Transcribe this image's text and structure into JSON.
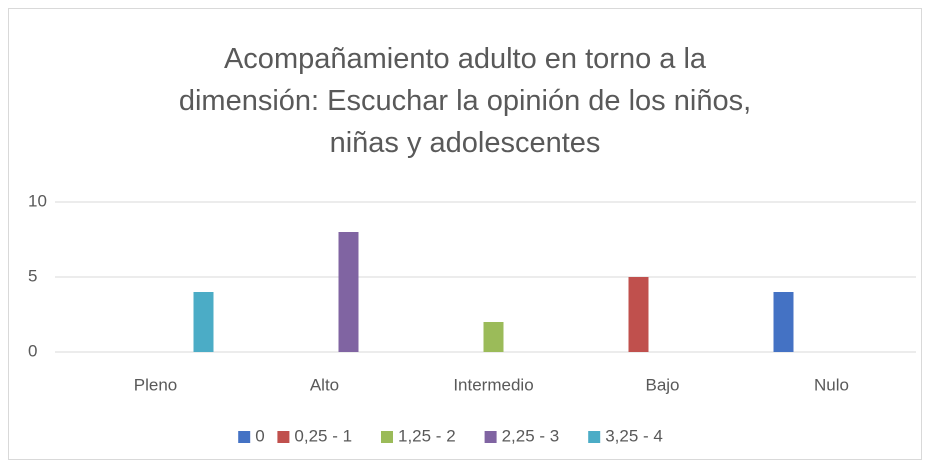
{
  "chart_data": {
    "type": "bar",
    "title": "Acompañamiento adulto en torno a la dimensión: Escuchar la opinión de los niños, niñas y adolescentes",
    "categories": [
      "Pleno",
      "Alto",
      "Intermedio",
      "Bajo",
      "Nulo"
    ],
    "series": [
      {
        "name": "0",
        "color": "#4472c4",
        "values": [
          0,
          0,
          0,
          0,
          4
        ]
      },
      {
        "name": "0,25 - 1",
        "color": "#c0504d",
        "values": [
          0,
          0,
          0,
          5,
          0
        ]
      },
      {
        "name": "1,25 - 2",
        "color": "#9bbb59",
        "values": [
          0,
          0,
          2,
          0,
          0
        ]
      },
      {
        "name": "2,25 - 3",
        "color": "#8064a2",
        "values": [
          0,
          8,
          0,
          0,
          0
        ]
      },
      {
        "name": "3,25 - 4",
        "color": "#4bacc6",
        "values": [
          4,
          0,
          0,
          0,
          0
        ]
      }
    ],
    "ylim": [
      0,
      10
    ],
    "yticks": [
      0,
      5,
      10
    ],
    "grid": true,
    "legend": "bottom"
  }
}
